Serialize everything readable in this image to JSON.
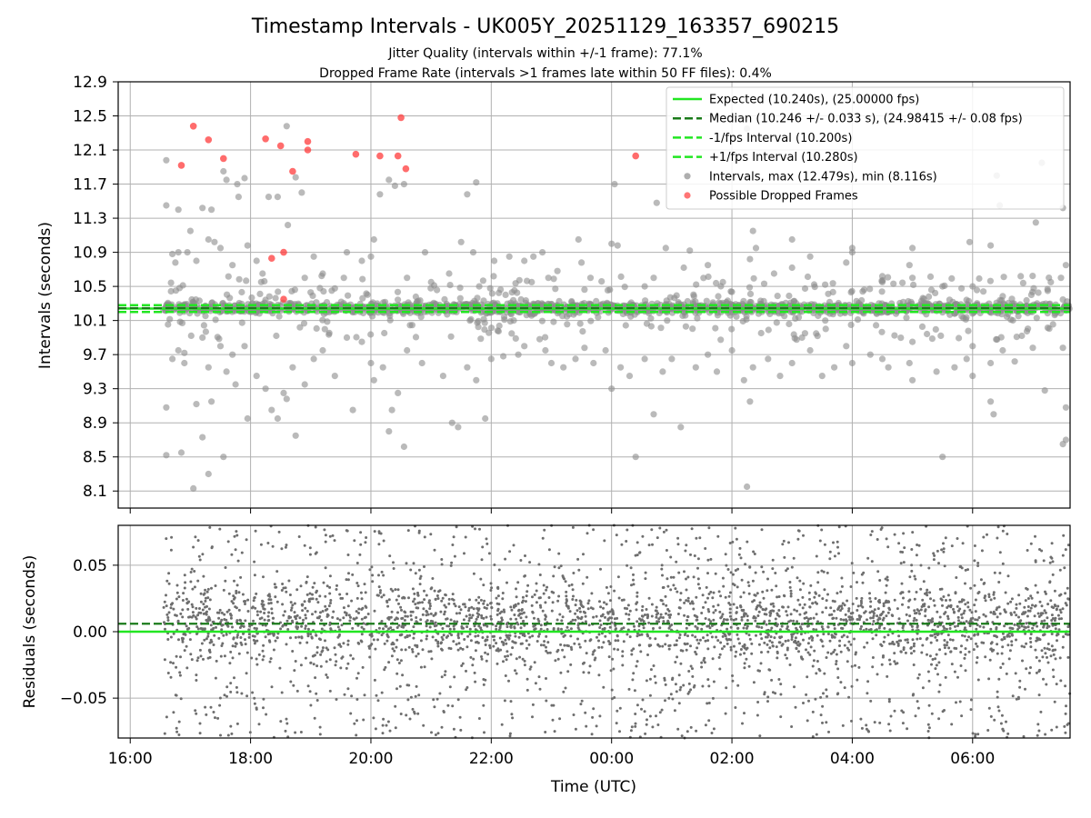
{
  "title": "Timestamp Intervals - UK005Y_20251129_163357_690215",
  "subtitle_1": "Jitter Quality (intervals within +/-1 frame): 77.1%",
  "subtitle_2": "Dropped Frame Rate (intervals >1 frames late within 50 FF files): 0.4%",
  "colors": {
    "expected": "#22e622",
    "median": "#1a7a1a",
    "fps_interval": "#22e622",
    "intervals": "#8c8c8c",
    "dropped": "#ff3b3b",
    "grid": "#b0b0b0"
  },
  "chart_data": [
    {
      "type": "scatter",
      "name": "intervals",
      "ylabel": "Intervals (seconds)",
      "ylim": [
        7.9,
        12.9
      ],
      "yticks": [
        8.1,
        8.5,
        8.9,
        9.3,
        9.7,
        10.1,
        10.5,
        10.9,
        11.3,
        11.7,
        12.1,
        12.5,
        12.9
      ],
      "ytick_labels": [
        "8.1",
        "8.5",
        "8.9",
        "9.3",
        "9.7",
        "10.1",
        "10.5",
        "10.9",
        "11.3",
        "11.7",
        "12.1",
        "12.5",
        "12.9"
      ],
      "xlim_hours": [
        15.8,
        31.62
      ],
      "xticks_hours": [
        16,
        18,
        20,
        22,
        24,
        26,
        28,
        30
      ],
      "lines": {
        "expected": 10.24,
        "median": 10.246,
        "minus_one_fps": 10.2,
        "plus_one_fps": 10.28
      },
      "legend": {
        "position": "upper right",
        "entries": [
          {
            "label": "Expected (10.240s), (25.00000 fps)",
            "kind": "solid",
            "color": "expected"
          },
          {
            "label": "Median (10.246 +/- 0.033 s), (24.98415 +/- 0.08 fps)",
            "kind": "dashed",
            "color": "median"
          },
          {
            "label": "-1/fps Interval (10.200s)",
            "kind": "dashed",
            "color": "fps_interval"
          },
          {
            "label": "+1/fps Interval (10.280s)",
            "kind": "dashed",
            "color": "fps_interval"
          },
          {
            "label": "Intervals, max (12.479s), min (8.116s)",
            "kind": "marker",
            "color": "intervals"
          },
          {
            "label": "Possible Dropped Frames",
            "kind": "marker",
            "color": "dropped"
          }
        ]
      },
      "dropped_points": [
        [
          16.85,
          11.92
        ],
        [
          17.05,
          12.38
        ],
        [
          17.3,
          12.22
        ],
        [
          17.55,
          12.0
        ],
        [
          18.25,
          12.23
        ],
        [
          18.5,
          12.15
        ],
        [
          18.7,
          11.85
        ],
        [
          18.95,
          12.1
        ],
        [
          18.95,
          12.2
        ],
        [
          19.75,
          12.05
        ],
        [
          20.15,
          12.03
        ],
        [
          20.45,
          12.03
        ],
        [
          20.5,
          12.48
        ],
        [
          20.58,
          11.88
        ],
        [
          18.35,
          10.83
        ],
        [
          18.55,
          10.9
        ],
        [
          18.55,
          10.35
        ],
        [
          24.4,
          12.03
        ]
      ],
      "outlier_points": [
        [
          16.6,
          11.98
        ],
        [
          16.6,
          11.45
        ],
        [
          16.7,
          10.88
        ],
        [
          16.75,
          10.78
        ],
        [
          16.8,
          10.9
        ],
        [
          16.8,
          11.4
        ],
        [
          16.95,
          10.9
        ],
        [
          17.0,
          11.15
        ],
        [
          17.1,
          10.8
        ],
        [
          17.2,
          11.42
        ],
        [
          17.3,
          11.05
        ],
        [
          17.35,
          11.4
        ],
        [
          17.4,
          11.02
        ],
        [
          17.5,
          10.95
        ],
        [
          17.55,
          11.85
        ],
        [
          17.6,
          11.75
        ],
        [
          17.7,
          10.75
        ],
        [
          17.78,
          11.7
        ],
        [
          17.8,
          11.55
        ],
        [
          17.9,
          11.77
        ],
        [
          17.95,
          10.98
        ],
        [
          18.1,
          10.8
        ],
        [
          18.2,
          10.65
        ],
        [
          18.3,
          11.55
        ],
        [
          18.45,
          11.55
        ],
        [
          18.6,
          12.38
        ],
        [
          18.62,
          11.22
        ],
        [
          18.75,
          11.78
        ],
        [
          18.85,
          11.6
        ],
        [
          18.9,
          10.6
        ],
        [
          19.05,
          10.85
        ],
        [
          19.2,
          10.65
        ],
        [
          19.35,
          10.45
        ],
        [
          19.55,
          10.6
        ],
        [
          19.6,
          10.9
        ],
        [
          19.85,
          10.8
        ],
        [
          20.0,
          10.85
        ],
        [
          20.05,
          11.05
        ],
        [
          20.15,
          11.58
        ],
        [
          20.3,
          11.75
        ],
        [
          20.4,
          11.68
        ],
        [
          20.55,
          11.7
        ],
        [
          20.6,
          10.6
        ],
        [
          20.9,
          10.9
        ],
        [
          21.3,
          10.65
        ],
        [
          21.5,
          11.02
        ],
        [
          21.7,
          10.9
        ],
        [
          21.75,
          11.72
        ],
        [
          21.6,
          11.58
        ],
        [
          21.8,
          10.5
        ],
        [
          22.05,
          10.8
        ],
        [
          22.3,
          10.85
        ],
        [
          22.55,
          10.8
        ],
        [
          22.7,
          10.85
        ],
        [
          22.85,
          10.9
        ],
        [
          22.95,
          10.6
        ],
        [
          23.1,
          10.68
        ],
        [
          23.45,
          11.05
        ],
        [
          23.5,
          10.78
        ],
        [
          23.65,
          10.6
        ],
        [
          24.0,
          11.0
        ],
        [
          24.1,
          10.98
        ],
        [
          24.05,
          11.7
        ],
        [
          24.55,
          10.5
        ],
        [
          24.75,
          11.48
        ],
        [
          24.9,
          10.95
        ],
        [
          25.3,
          10.92
        ],
        [
          25.6,
          10.75
        ],
        [
          25.85,
          10.55
        ],
        [
          26.3,
          10.82
        ],
        [
          26.35,
          11.15
        ],
        [
          26.4,
          10.95
        ],
        [
          26.25,
          12.35
        ],
        [
          26.7,
          10.65
        ],
        [
          27.0,
          11.05
        ],
        [
          27.3,
          10.85
        ],
        [
          27.55,
          10.52
        ],
        [
          28.0,
          10.9
        ],
        [
          28.5,
          10.55
        ],
        [
          29.0,
          10.95
        ],
        [
          29.0,
          10.6
        ],
        [
          29.5,
          10.5
        ],
        [
          29.95,
          11.02
        ],
        [
          30.0,
          10.5
        ],
        [
          30.3,
          10.98
        ],
        [
          30.4,
          11.8
        ],
        [
          30.45,
          11.45
        ],
        [
          30.8,
          10.62
        ],
        [
          31.05,
          11.25
        ],
        [
          31.5,
          11.42
        ],
        [
          31.55,
          10.75
        ],
        [
          31.3,
          10.55
        ],
        [
          31.15,
          11.95
        ],
        [
          28.0,
          10.95
        ],
        [
          28.5,
          10.62
        ],
        [
          27.9,
          10.78
        ],
        [
          28.95,
          10.75
        ],
        [
          25.2,
          10.72
        ],
        [
          24.7,
          10.6
        ],
        [
          27.0,
          10.72
        ],
        [
          16.6,
          9.08
        ],
        [
          16.6,
          8.52
        ],
        [
          16.7,
          9.65
        ],
        [
          16.8,
          9.75
        ],
        [
          16.9,
          9.72
        ],
        [
          16.85,
          8.55
        ],
        [
          17.05,
          8.13
        ],
        [
          17.2,
          8.73
        ],
        [
          17.3,
          8.3
        ],
        [
          17.35,
          9.15
        ],
        [
          17.5,
          9.8
        ],
        [
          17.55,
          8.5
        ],
        [
          17.1,
          9.12
        ],
        [
          17.3,
          9.55
        ],
        [
          17.6,
          9.5
        ],
        [
          17.7,
          9.7
        ],
        [
          17.75,
          9.35
        ],
        [
          17.9,
          9.8
        ],
        [
          17.95,
          8.95
        ],
        [
          18.1,
          9.45
        ],
        [
          18.25,
          9.3
        ],
        [
          18.35,
          9.05
        ],
        [
          18.45,
          8.95
        ],
        [
          18.55,
          9.25
        ],
        [
          18.6,
          9.18
        ],
        [
          18.7,
          9.55
        ],
        [
          18.75,
          8.75
        ],
        [
          18.9,
          9.35
        ],
        [
          19.05,
          9.65
        ],
        [
          19.2,
          9.75
        ],
        [
          19.4,
          9.45
        ],
        [
          19.7,
          9.05
        ],
        [
          19.85,
          9.85
        ],
        [
          20.0,
          9.6
        ],
        [
          20.05,
          9.4
        ],
        [
          20.2,
          9.55
        ],
        [
          20.3,
          8.8
        ],
        [
          20.55,
          8.62
        ],
        [
          20.35,
          9.05
        ],
        [
          20.45,
          9.25
        ],
        [
          20.6,
          9.75
        ],
        [
          20.85,
          9.6
        ],
        [
          21.2,
          9.45
        ],
        [
          21.35,
          8.9
        ],
        [
          21.45,
          8.85
        ],
        [
          21.6,
          9.55
        ],
        [
          21.75,
          9.4
        ],
        [
          21.9,
          8.95
        ],
        [
          22.0,
          9.65
        ],
        [
          22.2,
          9.68
        ],
        [
          22.45,
          9.7
        ],
        [
          22.55,
          9.8
        ],
        [
          22.9,
          9.75
        ],
        [
          23.0,
          9.6
        ],
        [
          23.2,
          9.55
        ],
        [
          23.4,
          9.65
        ],
        [
          23.55,
          9.78
        ],
        [
          23.7,
          9.6
        ],
        [
          23.9,
          9.75
        ],
        [
          24.0,
          9.3
        ],
        [
          24.15,
          9.55
        ],
        [
          24.3,
          9.45
        ],
        [
          24.4,
          8.5
        ],
        [
          24.55,
          9.65
        ],
        [
          24.7,
          9.0
        ],
        [
          24.85,
          9.5
        ],
        [
          25.0,
          9.65
        ],
        [
          25.15,
          8.85
        ],
        [
          25.4,
          9.55
        ],
        [
          25.6,
          9.7
        ],
        [
          25.75,
          9.5
        ],
        [
          26.0,
          9.75
        ],
        [
          26.2,
          9.4
        ],
        [
          26.3,
          9.15
        ],
        [
          26.35,
          9.55
        ],
        [
          26.25,
          8.15
        ],
        [
          26.6,
          9.65
        ],
        [
          26.8,
          9.45
        ],
        [
          27.0,
          9.6
        ],
        [
          27.3,
          9.75
        ],
        [
          27.5,
          9.45
        ],
        [
          27.7,
          9.55
        ],
        [
          27.9,
          9.8
        ],
        [
          28.0,
          9.6
        ],
        [
          28.3,
          9.7
        ],
        [
          28.5,
          9.65
        ],
        [
          28.6,
          9.55
        ],
        [
          28.95,
          9.6
        ],
        [
          29.0,
          9.85
        ],
        [
          29.0,
          9.4
        ],
        [
          29.4,
          9.5
        ],
        [
          29.5,
          8.5
        ],
        [
          29.7,
          9.55
        ],
        [
          29.9,
          9.65
        ],
        [
          30.0,
          9.8
        ],
        [
          30.3,
          9.6
        ],
        [
          30.0,
          9.45
        ],
        [
          30.3,
          9.15
        ],
        [
          30.35,
          9.0
        ],
        [
          30.5,
          9.75
        ],
        [
          30.7,
          9.62
        ],
        [
          31.0,
          9.78
        ],
        [
          31.2,
          9.28
        ],
        [
          31.55,
          9.08
        ],
        [
          31.5,
          8.65
        ],
        [
          31.55,
          8.7
        ],
        [
          31.5,
          9.78
        ],
        [
          16.9,
          9.6
        ],
        [
          17.2,
          9.9
        ],
        [
          19.6,
          9.9
        ]
      ]
    },
    {
      "type": "scatter",
      "name": "residuals",
      "xlabel": "Time (UTC)",
      "ylabel": "Residuals (seconds)",
      "ylim": [
        -0.08,
        0.08
      ],
      "yticks": [
        -0.05,
        0.0,
        0.05
      ],
      "ytick_labels": [
        "−0.05",
        "0.00",
        "0.05"
      ],
      "xticks_hours": [
        16,
        18,
        20,
        22,
        24,
        26,
        28,
        30
      ],
      "xtick_labels": [
        "16:00",
        "18:00",
        "20:00",
        "22:00",
        "00:00",
        "02:00",
        "04:00",
        "06:00"
      ],
      "lines": {
        "zero": 0.0,
        "median_offset": 0.006
      },
      "data_start_hours": 16.55
    }
  ]
}
